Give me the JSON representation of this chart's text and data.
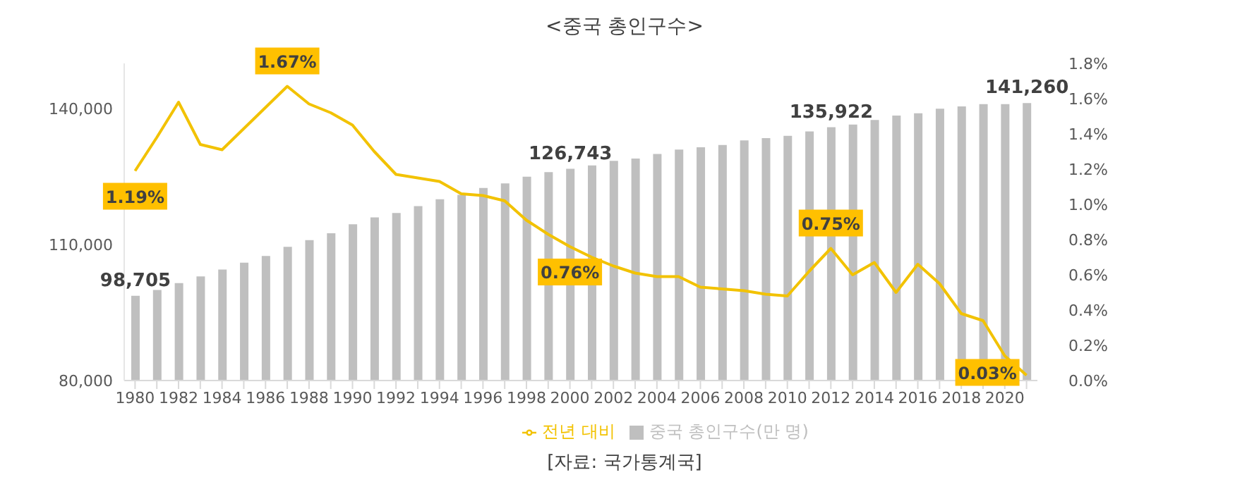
{
  "chart_data": {
    "type": "bar",
    "title": "<중국 총인구수>",
    "categories": [
      "1980",
      null,
      "1982",
      null,
      "1984",
      null,
      "1986",
      null,
      "1988",
      null,
      "1990",
      null,
      "1992",
      null,
      "1994",
      null,
      "1996",
      null,
      "1998",
      null,
      "2000",
      null,
      "2002",
      null,
      "2004",
      null,
      "2006",
      null,
      "2008",
      null,
      "2010",
      null,
      "2012",
      null,
      "2014",
      null,
      "2016",
      null,
      "2018",
      null,
      "2020",
      null
    ],
    "series": [
      {
        "name": "중국 총인구수(만 명)",
        "color": "#bfbfbf",
        "values": [
          98705,
          100000,
          101500,
          103000,
          104500,
          106000,
          107500,
          109500,
          111000,
          112500,
          114500,
          116000,
          117000,
          118500,
          120000,
          121000,
          122500,
          123500,
          125000,
          126000,
          126743,
          127500,
          128500,
          129000,
          130000,
          131000,
          131500,
          132000,
          133000,
          133500,
          134000,
          135000,
          135922,
          136500,
          137500,
          138500,
          139000,
          140000,
          140500,
          141000,
          141000,
          141260
        ],
        "value_labels": [
          "98,705",
          null,
          null,
          null,
          null,
          null,
          null,
          null,
          null,
          null,
          null,
          null,
          null,
          null,
          null,
          null,
          null,
          null,
          null,
          null,
          "126,743",
          null,
          null,
          null,
          null,
          null,
          null,
          null,
          null,
          null,
          null,
          null,
          "135,922",
          null,
          null,
          null,
          null,
          null,
          null,
          null,
          null,
          "141,260"
        ]
      },
      {
        "name": "전년 대비",
        "type": "line",
        "axis": "y2",
        "color": "#f2c200",
        "values": [
          1.19,
          1.38,
          1.58,
          1.34,
          1.31,
          1.43,
          1.55,
          1.67,
          1.57,
          1.52,
          1.45,
          1.3,
          1.17,
          1.15,
          1.13,
          1.06,
          1.05,
          1.02,
          0.91,
          0.83,
          0.76,
          0.7,
          0.65,
          0.61,
          0.59,
          0.59,
          0.53,
          0.52,
          0.51,
          0.49,
          0.48,
          0.62,
          0.75,
          0.6,
          0.67,
          0.5,
          0.66,
          0.55,
          0.38,
          0.34,
          0.14,
          0.03
        ],
        "value_labels": [
          "1.19%",
          null,
          null,
          null,
          null,
          null,
          null,
          "1.67%",
          null,
          null,
          null,
          null,
          null,
          null,
          null,
          null,
          null,
          null,
          null,
          null,
          "0.76%",
          null,
          null,
          null,
          null,
          null,
          null,
          null,
          null,
          null,
          null,
          null,
          "0.75%",
          null,
          null,
          null,
          null,
          null,
          null,
          null,
          null,
          "0.03%"
        ]
      }
    ],
    "ylim": [
      80000,
      150000
    ],
    "yticks": [
      {
        "value": 80000,
        "label": "80,000"
      },
      {
        "value": 110000,
        "label": "110,000"
      },
      {
        "value": 140000,
        "label": "140,000"
      }
    ],
    "y2lim": [
      0,
      1.8
    ],
    "y2ticks": [
      {
        "value": 0,
        "label": "0.0%"
      },
      {
        "value": 0.2,
        "label": "0.2%"
      },
      {
        "value": 0.4,
        "label": "0.4%"
      },
      {
        "value": 0.6,
        "label": "0.6%"
      },
      {
        "value": 0.8,
        "label": "0.8%"
      },
      {
        "value": 1.0,
        "label": "1.0%"
      },
      {
        "value": 1.2,
        "label": "1.2%"
      },
      {
        "value": 1.4,
        "label": "1.4%"
      },
      {
        "value": 1.6,
        "label": "1.6%"
      },
      {
        "value": 1.8,
        "label": "1.8%"
      }
    ],
    "grid": false,
    "legend": "bottom",
    "marker": "none",
    "line_style": "solid",
    "annotations": [
      "[자료: 국가통계국]"
    ]
  }
}
